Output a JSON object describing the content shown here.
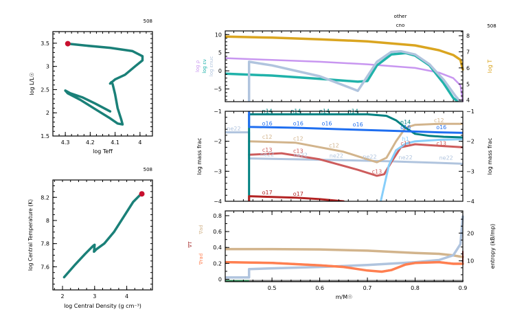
{
  "colors": {
    "track": "#1a8078",
    "marker": "#c8102e",
    "logT": "#daa520",
    "logRho": "#c896f0",
    "epsNuc": "#b0c4de",
    "epsNu": "#20b2aa",
    "h1": "#87cefa",
    "he4": "#808080",
    "c12": "#d2b48c",
    "c13": "#cd5c5c",
    "n14": "#008080",
    "o16": "#1e6ef0",
    "o17": "#b22222",
    "ne22": "#b0c4de",
    "grad_ad": "#d2b48c",
    "grad_T": "#a52a2a",
    "grad_rad": "#ff7f50",
    "entropy": "#b0c4de"
  },
  "chart_data": [
    {
      "id": "hr",
      "type": "line",
      "model_number": "508",
      "xlabel": "log Teff",
      "ylabel": "log L/L☉",
      "xlim": [
        4.35,
        3.95
      ],
      "ylim": [
        1.5,
        3.75
      ],
      "xticks": [
        4.3,
        4.2,
        4.1,
        4.0
      ],
      "xticklabels": [
        "4.3",
        "4.2",
        "4.1",
        "4"
      ],
      "yticks": [
        1.5,
        2.0,
        2.5,
        3.0,
        3.5
      ],
      "yticklabels": [
        "1.5",
        "2",
        "2.5",
        "3",
        "3.5"
      ],
      "x": [
        4.12,
        4.18,
        4.23,
        4.28,
        4.3,
        4.29,
        4.24,
        4.18,
        4.12,
        4.09,
        4.07,
        4.075,
        4.09,
        4.1,
        4.11,
        4.115,
        4.12,
        4.1,
        4.06,
        4.02,
        3.99,
        3.99,
        4.03,
        4.12,
        4.22,
        4.29
      ],
      "y": [
        2.03,
        2.2,
        2.33,
        2.42,
        2.48,
        2.42,
        2.28,
        2.08,
        1.88,
        1.77,
        1.75,
        1.85,
        2.1,
        2.4,
        2.62,
        2.66,
        2.63,
        2.72,
        2.82,
        3.0,
        3.13,
        3.22,
        3.33,
        3.4,
        3.45,
        3.49
      ],
      "marker": {
        "x": 4.29,
        "y": 3.49
      }
    },
    {
      "id": "center",
      "type": "line",
      "model_number": "508",
      "xlabel": "log Central Density (g cm⁻³)",
      "ylabel": "log Central Temperature (K)",
      "xlim": [
        1.7,
        4.8
      ],
      "ylim": [
        7.4,
        8.35
      ],
      "xticks": [
        2,
        3,
        4
      ],
      "xticklabels": [
        "2",
        "3",
        "4"
      ],
      "yticks": [
        7.6,
        7.8,
        8.0,
        8.2
      ],
      "yticklabels": [
        "7.6",
        "7.8",
        "8",
        "8.2"
      ],
      "x": [
        2.05,
        2.4,
        2.7,
        2.95,
        3.0,
        2.98,
        3.05,
        3.3,
        3.6,
        3.9,
        4.2,
        4.45
      ],
      "y": [
        7.51,
        7.62,
        7.71,
        7.78,
        7.79,
        7.73,
        7.75,
        7.8,
        7.9,
        8.03,
        8.16,
        8.23
      ],
      "marker": {
        "x": 4.47,
        "y": 8.23
      }
    },
    {
      "id": "profile-top",
      "type": "line",
      "title_lines": [
        "other",
        "cno"
      ],
      "model_number": "508",
      "xlim": [
        0.402,
        0.9
      ],
      "ylim": [
        -8.5,
        11
      ],
      "yticks": [
        -5,
        0,
        5,
        10
      ],
      "yticklabels": [
        "−5",
        "0",
        "5",
        "10"
      ],
      "y2lim": [
        3.9,
        8.3
      ],
      "y2ticks": [
        4,
        5,
        6,
        7,
        8
      ],
      "y2ticklabels": [
        "4",
        "5",
        "6",
        "7",
        "8"
      ],
      "left_labels": [
        "log ρ",
        "log εν",
        "log εnuc"
      ],
      "right_label": "log T",
      "series": [
        {
          "name": "log T",
          "axis": "right",
          "color_key": "logT",
          "x": [
            0.402,
            0.5,
            0.6,
            0.7,
            0.8,
            0.85,
            0.88,
            0.895,
            0.9
          ],
          "y": [
            7.95,
            7.88,
            7.78,
            7.65,
            7.4,
            7.1,
            6.8,
            6.5,
            5.9
          ]
        },
        {
          "name": "log rho",
          "axis": "left",
          "color_key": "logRho",
          "x": [
            0.402,
            0.5,
            0.6,
            0.7,
            0.8,
            0.85,
            0.88,
            0.895,
            0.9
          ],
          "y": [
            3.5,
            3.0,
            2.5,
            1.8,
            0.8,
            -0.5,
            -2.0,
            -4.0,
            -8.5
          ]
        },
        {
          "name": "log eps_nu",
          "axis": "left",
          "color_key": "epsNu",
          "x": [
            0.402,
            0.5,
            0.6,
            0.68,
            0.7,
            0.72,
            0.75,
            0.78,
            0.8,
            0.83,
            0.86,
            0.88,
            0.89
          ],
          "y": [
            -0.8,
            -1.3,
            -2.2,
            -3.0,
            -2.8,
            1.5,
            4.5,
            4.9,
            4.2,
            1.5,
            -3.5,
            -7.5,
            -8.5
          ]
        },
        {
          "name": "log eps_nuc",
          "axis": "left",
          "color_key": "epsNuc",
          "x": [
            0.452,
            0.452,
            0.5,
            0.6,
            0.67,
            0.68,
            0.69,
            0.72,
            0.75,
            0.77,
            0.8,
            0.83,
            0.86,
            0.885,
            0.895
          ],
          "y": [
            -8.5,
            2.5,
            1.5,
            -1.5,
            -5.0,
            -5.5,
            -3.5,
            2.5,
            5.2,
            5.4,
            4.5,
            1.8,
            -2.5,
            -7.0,
            -8.5
          ]
        }
      ]
    },
    {
      "id": "profile-mid",
      "type": "line",
      "xlim": [
        0.402,
        0.9
      ],
      "ylim": [
        -4,
        -1
      ],
      "yticks": [
        -4,
        -3,
        -2,
        -1
      ],
      "yticklabels": [
        "−4",
        "−3",
        "−2",
        "−1"
      ],
      "ylabel": "log mass frac",
      "series": [
        {
          "name": "n14",
          "color_key": "n14",
          "x": [
            0.452,
            0.452,
            0.55,
            0.65,
            0.7,
            0.74,
            0.76,
            0.78,
            0.8,
            0.83,
            0.86,
            0.9
          ],
          "y": [
            -4.0,
            -1.1,
            -1.1,
            -1.1,
            -1.1,
            -1.15,
            -1.3,
            -1.55,
            -1.75,
            -1.82,
            -1.85,
            -1.87
          ],
          "labels": [
            [
              0.49,
              -1.06,
              "n14"
            ],
            [
              0.55,
              -1.06,
              "n14"
            ],
            [
              0.61,
              -1.06,
              "n14"
            ],
            [
              0.67,
              -1.06,
              "n14"
            ],
            [
              0.78,
              -1.42,
              "n14"
            ]
          ]
        },
        {
          "name": "o16",
          "color_key": "o16",
          "x": [
            0.452,
            0.452,
            0.55,
            0.65,
            0.75,
            0.85,
            0.9
          ],
          "y": [
            -1.0,
            -1.52,
            -1.55,
            -1.6,
            -1.65,
            -1.7,
            -1.72
          ],
          "labels": [
            [
              0.49,
              -1.47,
              "o16"
            ],
            [
              0.555,
              -1.47,
              "o16"
            ],
            [
              0.615,
              -1.47,
              "o16"
            ],
            [
              0.68,
              -1.5,
              "o16"
            ],
            [
              0.78,
              -1.6,
              "o16"
            ],
            [
              0.855,
              -1.6,
              "o16"
            ]
          ]
        },
        {
          "name": "c12",
          "color_key": "c12",
          "x": [
            0.452,
            0.55,
            0.65,
            0.7,
            0.72,
            0.74,
            0.76,
            0.78,
            0.8,
            0.85,
            0.9
          ],
          "y": [
            -2.0,
            -2.05,
            -2.35,
            -2.6,
            -2.7,
            -2.55,
            -2.0,
            -1.55,
            -1.45,
            -1.42,
            -1.42
          ],
          "labels": [
            [
              0.49,
              -1.92,
              "c12"
            ],
            [
              0.555,
              -1.97,
              "c12"
            ],
            [
              0.63,
              -2.2,
              "c12"
            ],
            [
              0.85,
              -1.37,
              "c12"
            ]
          ]
        },
        {
          "name": "c13",
          "color_key": "c13",
          "x": [
            0.452,
            0.52,
            0.6,
            0.68,
            0.72,
            0.735,
            0.75,
            0.77,
            0.8,
            0.85,
            0.9
          ],
          "y": [
            -2.45,
            -2.4,
            -2.6,
            -2.95,
            -3.15,
            -3.1,
            -2.7,
            -2.2,
            -2.1,
            -2.15,
            -2.2
          ],
          "labels": [
            [
              0.49,
              -2.35,
              "c13"
            ],
            [
              0.555,
              -2.38,
              "c13"
            ],
            [
              0.72,
              -3.07,
              "c13"
            ],
            [
              0.78,
              -2.13,
              "c13"
            ],
            [
              0.855,
              -2.13,
              "c13"
            ]
          ]
        },
        {
          "name": "ne22",
          "color_key": "ne22",
          "x": [
            0.402,
            0.452,
            0.452,
            0.55,
            0.65,
            0.75,
            0.85,
            0.9
          ],
          "y": [
            -1.7,
            -1.7,
            -2.57,
            -2.6,
            -2.63,
            -2.67,
            -2.72,
            -2.75
          ],
          "labels": [
            [
              0.42,
              -1.64,
              "ne22"
            ],
            [
              0.49,
              -2.5,
              "ne22"
            ],
            [
              0.56,
              -2.52,
              "ne22"
            ],
            [
              0.635,
              -2.55,
              "ne22"
            ],
            [
              0.705,
              -2.58,
              "ne22"
            ],
            [
              0.78,
              -2.6,
              "ne22"
            ],
            [
              0.865,
              -2.62,
              "ne22"
            ]
          ]
        },
        {
          "name": "h1",
          "color_key": "h1",
          "x": [
            0.728,
            0.735,
            0.745,
            0.76,
            0.78,
            0.8,
            0.85,
            0.9
          ],
          "y": [
            -4.0,
            -3.5,
            -2.8,
            -2.3,
            -2.08,
            -2.0,
            -1.95,
            -1.93
          ],
          "labels": [
            [
              0.78,
              -1.98,
              "h1"
            ]
          ]
        },
        {
          "name": "o17",
          "color_key": "o17",
          "x": [
            0.452,
            0.452,
            0.55,
            0.6,
            0.65
          ],
          "y": [
            -4.0,
            -3.83,
            -3.88,
            -3.93,
            -4.0
          ],
          "labels": [
            [
              0.49,
              -3.77,
              "o17"
            ],
            [
              0.555,
              -3.82,
              "o17"
            ]
          ]
        }
      ]
    },
    {
      "id": "profile-bottom",
      "type": "line",
      "xlim": [
        0.402,
        0.9
      ],
      "ylim": [
        -0.03,
        0.86
      ],
      "yticks": [
        0,
        0.2,
        0.4,
        0.6,
        0.8
      ],
      "yticklabels": [
        "0",
        "0.2",
        "0.4",
        "0.6",
        "0.8"
      ],
      "xticks": [
        0.5,
        0.6,
        0.7,
        0.8,
        0.9
      ],
      "xticklabels": [
        "0.5",
        "0.6",
        "0.7",
        "0.8",
        "0.9"
      ],
      "xlabel": "m/M☉",
      "y2lim": [
        2.5,
        28
      ],
      "y2ticks": [
        10,
        20
      ],
      "y2ticklabels": [
        "10",
        "20"
      ],
      "left_labels": [
        "∇ad",
        "∇T",
        "∇rad"
      ],
      "right_label": "entropy (kB/mp)",
      "series": [
        {
          "name": "grad_ad",
          "axis": "left",
          "color_key": "grad_ad",
          "x": [
            0.402,
            0.5,
            0.6,
            0.7,
            0.8,
            0.85,
            0.88,
            0.9
          ],
          "y": [
            0.38,
            0.38,
            0.375,
            0.36,
            0.33,
            0.32,
            0.3,
            0.28
          ]
        },
        {
          "name": "entropy",
          "axis": "right",
          "color_key": "entropy",
          "x": [
            0.402,
            0.452,
            0.452,
            0.5,
            0.6,
            0.7,
            0.8,
            0.85,
            0.88,
            0.895,
            0.9
          ],
          "y": [
            4.0,
            4.0,
            7.0,
            7.3,
            7.8,
            8.5,
            9.5,
            10.3,
            12.0,
            16.0,
            26.0
          ]
        },
        {
          "name": "grad_T",
          "axis": "left",
          "color_key": "grad_T",
          "x": [
            0.402,
            0.5,
            0.6,
            0.65,
            0.7,
            0.73,
            0.75,
            0.78,
            0.8,
            0.85,
            0.88,
            0.9,
            0.9
          ],
          "y": [
            0.22,
            0.21,
            0.18,
            0.16,
            0.11,
            0.1,
            0.12,
            0.19,
            0.21,
            0.22,
            0.2,
            0.2,
            0.35
          ]
        },
        {
          "name": "grad_rad",
          "axis": "left",
          "color_key": "grad_rad",
          "x": [
            0.402,
            0.5,
            0.6,
            0.65,
            0.7,
            0.73,
            0.75,
            0.78,
            0.8,
            0.85,
            0.88,
            0.9
          ],
          "y": [
            0.215,
            0.205,
            0.175,
            0.155,
            0.11,
            0.095,
            0.115,
            0.185,
            0.205,
            0.215,
            0.195,
            0.195
          ]
        },
        {
          "name": "zero",
          "axis": "left",
          "color_key": "he4",
          "x": [
            0.402,
            0.9
          ],
          "y": [
            -0.02,
            -0.02
          ]
        }
      ]
    }
  ]
}
